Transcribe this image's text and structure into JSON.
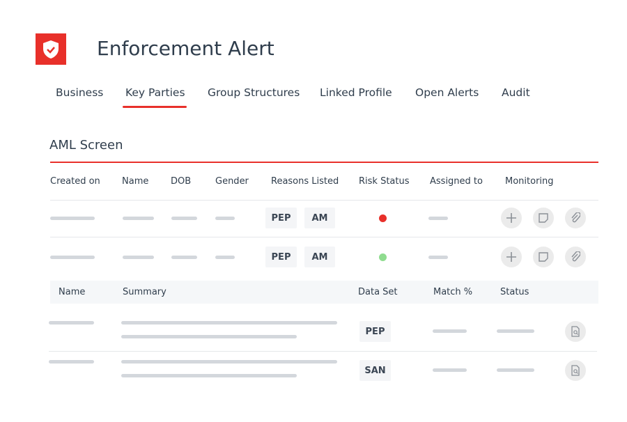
{
  "header": {
    "title": "Enforcement Alert",
    "logo_icon": "shield-check-icon",
    "accent": "#e8302a"
  },
  "tabs": [
    {
      "label": "Business"
    },
    {
      "label": "Key Parties",
      "active": true
    },
    {
      "label": "Group Structures"
    },
    {
      "label": "Linked Profile"
    },
    {
      "label": "Open Alerts"
    },
    {
      "label": "Audit"
    }
  ],
  "section": {
    "title": "AML Screen"
  },
  "table": {
    "columns": [
      "Created on",
      "Name",
      "DOB",
      "Gender",
      "Reasons Listed",
      "Risk Status",
      "Assigned to",
      "Monitoring"
    ],
    "rows": [
      {
        "reasons": [
          "PEP",
          "AM"
        ],
        "risk_color": "#e8302a"
      },
      {
        "reasons": [
          "PEP",
          "AM"
        ],
        "risk_color": "#8fdc8f"
      }
    ],
    "monitoring_icons": [
      "plus-icon",
      "note-icon",
      "paperclip-icon"
    ]
  },
  "matches": {
    "columns": [
      "Name",
      "Summary",
      "Data Set",
      "Match %",
      "Status"
    ],
    "rows": [
      {
        "data_set": "PEP"
      },
      {
        "data_set": "SAN"
      }
    ],
    "action_icon": "document-search-icon"
  }
}
